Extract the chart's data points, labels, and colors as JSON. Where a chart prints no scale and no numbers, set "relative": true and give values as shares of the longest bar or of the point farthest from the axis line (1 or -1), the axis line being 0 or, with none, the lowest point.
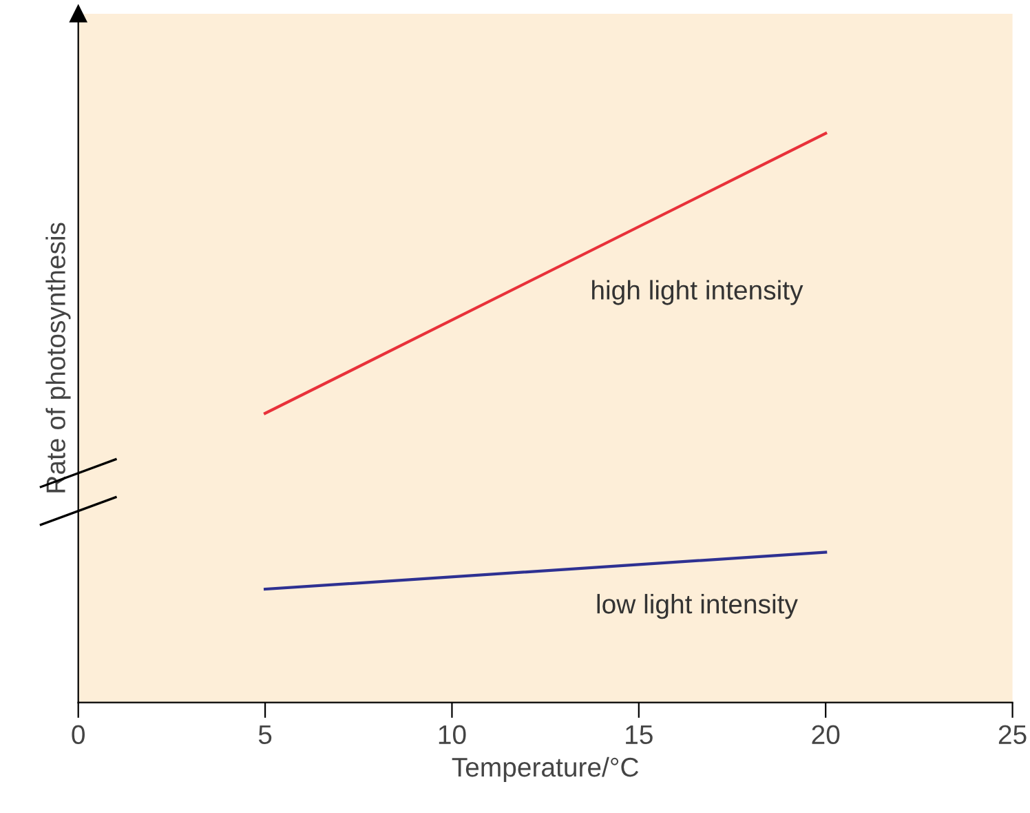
{
  "chart_data": {
    "type": "line",
    "xlabel": "Temperature/°C",
    "ylabel": "Rate of photosynthesis",
    "relative": true,
    "xlim": [
      0,
      25
    ],
    "xticks": [
      0,
      5,
      10,
      15,
      20,
      25
    ],
    "grid": false,
    "legend": false,
    "marker": "none",
    "line_style": "solid",
    "x": [
      5,
      20
    ],
    "series": [
      {
        "name": "high light intensity",
        "color": "#e8313a",
        "values": [
          0.508,
          1.0
        ]
      },
      {
        "name": "low light intensity",
        "color": "#2e3192",
        "values": [
          0.199,
          0.264
        ]
      }
    ]
  }
}
